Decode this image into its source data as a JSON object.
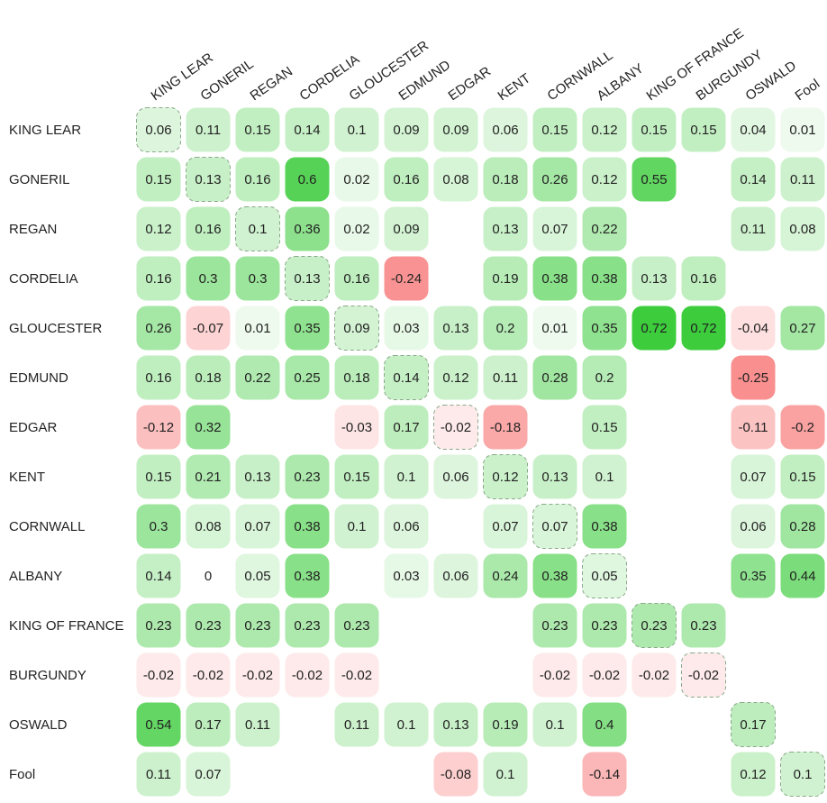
{
  "chart_data": {
    "type": "heatmap",
    "title": "",
    "xlabel": "",
    "ylabel": "",
    "columns": [
      "KING LEAR",
      "GONERIL",
      "REGAN",
      "CORDELIA",
      "GLOUCESTER",
      "EDMUND",
      "EDGAR",
      "KENT",
      "CORNWALL",
      "ALBANY",
      "KING OF FRANCE",
      "BURGUNDY",
      "OSWALD",
      "Fool"
    ],
    "rows": [
      "KING LEAR",
      "GONERIL",
      "REGAN",
      "CORDELIA",
      "GLOUCESTER",
      "EDMUND",
      "EDGAR",
      "KENT",
      "CORNWALL",
      "ALBANY",
      "KING OF FRANCE",
      "BURGUNDY",
      "OSWALD",
      "Fool"
    ],
    "values": [
      [
        0.06,
        0.11,
        0.15,
        0.14,
        0.1,
        0.09,
        0.09,
        0.06,
        0.15,
        0.12,
        0.15,
        0.15,
        0.04,
        0.01
      ],
      [
        0.15,
        0.13,
        0.16,
        0.6,
        0.02,
        0.16,
        0.08,
        0.18,
        0.26,
        0.12,
        0.55,
        null,
        0.14,
        0.11
      ],
      [
        0.12,
        0.16,
        0.1,
        0.36,
        0.02,
        0.09,
        null,
        0.13,
        0.07,
        0.22,
        null,
        null,
        0.11,
        0.08
      ],
      [
        0.16,
        0.3,
        0.3,
        0.13,
        0.16,
        -0.24,
        null,
        0.19,
        0.38,
        0.38,
        0.13,
        0.16,
        null,
        null
      ],
      [
        0.26,
        -0.07,
        0.01,
        0.35,
        0.09,
        0.03,
        0.13,
        0.2,
        0.01,
        0.35,
        0.72,
        0.72,
        -0.04,
        0.27
      ],
      [
        0.16,
        0.18,
        0.22,
        0.25,
        0.18,
        0.14,
        0.12,
        0.11,
        0.28,
        0.2,
        null,
        null,
        -0.25,
        null
      ],
      [
        -0.12,
        0.32,
        null,
        null,
        -0.03,
        0.17,
        -0.02,
        -0.18,
        null,
        0.15,
        null,
        null,
        -0.11,
        -0.2
      ],
      [
        0.15,
        0.21,
        0.13,
        0.23,
        0.15,
        0.1,
        0.06,
        0.12,
        0.13,
        0.1,
        null,
        null,
        0.07,
        0.15
      ],
      [
        0.3,
        0.08,
        0.07,
        0.38,
        0.1,
        0.06,
        null,
        0.07,
        0.07,
        0.38,
        null,
        null,
        0.06,
        0.28
      ],
      [
        0.14,
        0,
        0.05,
        0.38,
        null,
        0.03,
        0.06,
        0.24,
        0.38,
        0.05,
        null,
        null,
        0.35,
        0.44
      ],
      [
        0.23,
        0.23,
        0.23,
        0.23,
        0.23,
        null,
        null,
        null,
        0.23,
        0.23,
        0.23,
        0.23,
        null,
        null
      ],
      [
        -0.02,
        -0.02,
        -0.02,
        -0.02,
        -0.02,
        null,
        null,
        null,
        -0.02,
        -0.02,
        -0.02,
        -0.02,
        null,
        null
      ],
      [
        0.54,
        0.17,
        0.11,
        null,
        0.11,
        0.1,
        0.13,
        0.19,
        0.1,
        0.4,
        null,
        null,
        0.17,
        null
      ],
      [
        0.11,
        0.07,
        null,
        null,
        null,
        null,
        -0.08,
        0.1,
        null,
        -0.14,
        null,
        null,
        0.12,
        0.1
      ]
    ],
    "diagonal_style": "dashed-outline",
    "legend": "none",
    "grid": false,
    "colors": {
      "positive_max": "#3ccc3c",
      "positive_min": "#f2fbf2",
      "negative_max": "#f98f8f",
      "negative_min": "#fff6f6",
      "diagonal_border": "#8aaa8a",
      "text": "#222222"
    }
  }
}
